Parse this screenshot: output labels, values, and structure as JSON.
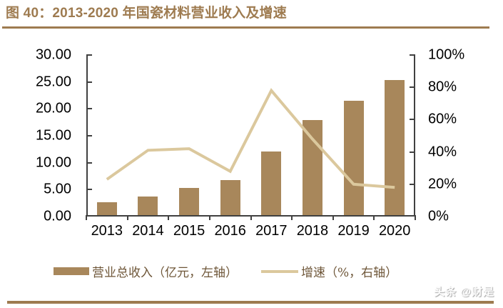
{
  "header": {
    "title": "图 40：2013-2020 年国瓷材料营业收入及增速"
  },
  "watermark": "头条 @财是",
  "legend": {
    "items": [
      {
        "label": "营业总收入（亿元，左轴）",
        "swatch": "bar-swatch"
      },
      {
        "label": "增速（%，右轴）",
        "swatch": "line-swatch"
      }
    ],
    "position": "bottom"
  },
  "colors": {
    "bar": "#A8875B",
    "line": "#DBC89D",
    "accent_brown": "#9E7B50",
    "legend_text": "#6E5638",
    "axis": "#404040",
    "tick_text": "#000000"
  },
  "chart_data": {
    "type": "bar",
    "title": "图 40：2013-2020 年国瓷材料营业收入及增速",
    "categories": [
      "2013",
      "2014",
      "2015",
      "2016",
      "2017",
      "2018",
      "2019",
      "2020"
    ],
    "series": [
      {
        "name": "营业总收入（亿元，左轴）",
        "type": "bar",
        "axis": "left",
        "values": [
          2.6,
          3.7,
          5.3,
          6.8,
          12.1,
          17.9,
          21.5,
          25.4
        ]
      },
      {
        "name": "增速（%，右轴）",
        "type": "line",
        "axis": "right",
        "values": [
          23,
          41,
          42,
          28,
          78,
          48,
          20,
          18
        ]
      }
    ],
    "left_axis": {
      "label": "亿元",
      "min": 0,
      "max": 30,
      "step": 5,
      "tick_labels": [
        "0.00",
        "5.00",
        "10.00",
        "15.00",
        "20.00",
        "25.00",
        "30.00"
      ]
    },
    "right_axis": {
      "label": "%",
      "min": 0,
      "max": 100,
      "step": 20,
      "tick_labels": [
        "0%",
        "20%",
        "40%",
        "60%",
        "80%",
        "100%"
      ]
    },
    "grid": false,
    "legend_position": "bottom",
    "xlabel": "",
    "ylabel": ""
  }
}
